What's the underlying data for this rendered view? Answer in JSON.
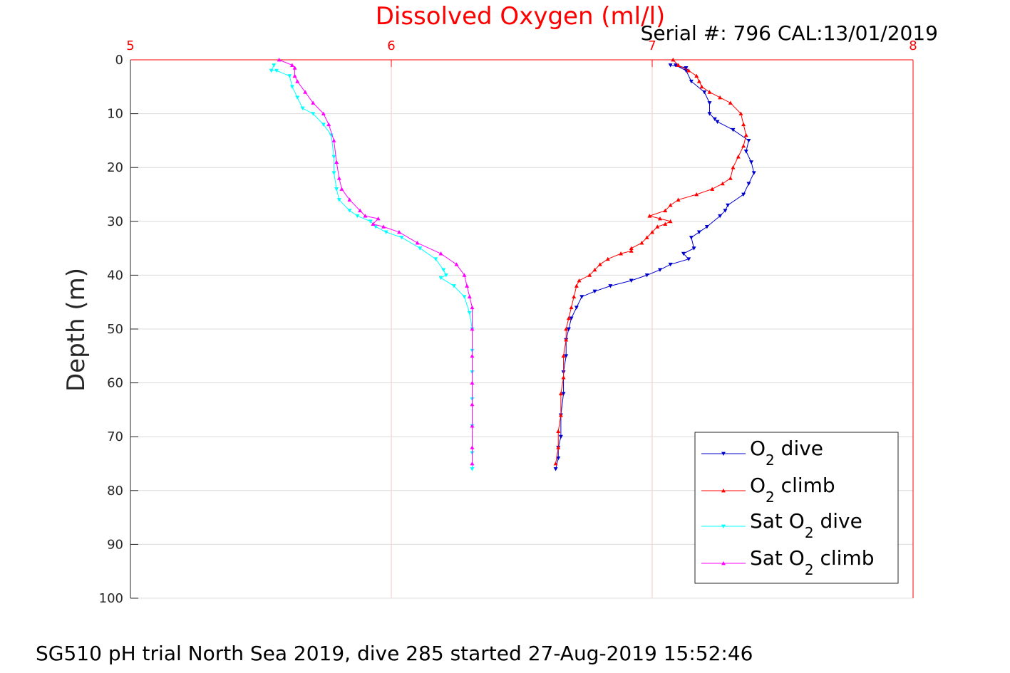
{
  "chart_data": {
    "type": "line",
    "title": "Dissolved Oxygen (ml/l)",
    "subtitle": "Serial #: 796  CAL:13/01/2019",
    "caption": "SG510 pH trial North Sea 2019, dive 285 started 27-Aug-2019 15:52:46",
    "ylabel": "Depth (m)",
    "xlabel": "",
    "xlim": [
      5,
      8
    ],
    "ylim": [
      0,
      100
    ],
    "y_reversed": true,
    "x_axis_position": "top",
    "x_ticks": [
      "5",
      "6",
      "7",
      "8"
    ],
    "y_ticks": [
      "0",
      "10",
      "20",
      "30",
      "40",
      "50",
      "60",
      "70",
      "80",
      "90",
      "100"
    ],
    "grid": true,
    "legend_placement": "bottom-right",
    "series": [
      {
        "name": "O2 dive",
        "legend": {
          "pre": "O",
          "sub": "2",
          "post": " dive"
        },
        "color": "#0000cc",
        "marker": "triangle-down",
        "x": [
          7.07,
          7.13,
          7.09,
          7.13,
          7.15,
          7.2,
          7.22,
          7.22,
          7.24,
          7.25,
          7.31,
          7.37,
          7.36,
          7.38,
          7.39,
          7.37,
          7.35,
          7.29,
          7.28,
          7.26,
          7.21,
          7.18,
          7.15,
          7.16,
          7.12,
          7.14,
          7.07,
          7.03,
          6.98,
          6.92,
          6.84,
          6.78,
          6.73,
          6.71,
          6.69,
          6.68,
          6.67,
          6.67,
          6.66,
          6.66,
          6.65,
          6.65,
          6.64,
          6.64,
          6.63
        ],
        "y": [
          1,
          1.5,
          1,
          2,
          4,
          6,
          8,
          10,
          11,
          11.5,
          13,
          15,
          17,
          19,
          21,
          23,
          25,
          27,
          28,
          29,
          31,
          32,
          33,
          35,
          36,
          37,
          38,
          39,
          40,
          41,
          42,
          43,
          44,
          46,
          48,
          50,
          52,
          55,
          58,
          62,
          66,
          70,
          72,
          74,
          76
        ]
      },
      {
        "name": "O2 climb",
        "legend": {
          "pre": "O",
          "sub": "2",
          "post": " climb"
        },
        "color": "#ff0000",
        "marker": "triangle-up",
        "x": [
          6.63,
          6.64,
          6.64,
          6.65,
          6.65,
          6.66,
          6.66,
          6.67,
          6.67,
          6.68,
          6.69,
          6.7,
          6.71,
          6.72,
          6.76,
          6.78,
          6.8,
          6.83,
          6.88,
          6.92,
          6.92,
          6.96,
          6.98,
          7.0,
          7.02,
          7.05,
          7.07,
          7.03,
          6.99,
          7.05,
          7.07,
          7.1,
          7.17,
          7.23,
          7.27,
          7.3,
          7.31,
          7.33,
          7.35,
          7.36,
          7.35,
          7.34,
          7.3,
          7.26,
          7.22,
          7.19,
          7.18,
          7.17,
          7.14,
          7.1,
          7.08
        ],
        "y": [
          75,
          72,
          69,
          66,
          62,
          59,
          55,
          52,
          50,
          48,
          46,
          44,
          42,
          41,
          40,
          39,
          38,
          37,
          36,
          35.5,
          35,
          34,
          33,
          32,
          31,
          30.5,
          30,
          29.5,
          29,
          28,
          27,
          26,
          25,
          24,
          23,
          22,
          20,
          18,
          16,
          14,
          12,
          10,
          8,
          7,
          6,
          5,
          4,
          3,
          2,
          1,
          0
        ]
      },
      {
        "name": "Sat O2 dive",
        "legend": {
          "pre": "Sat O",
          "sub": "2",
          "post": " dive"
        },
        "color": "#00ffff",
        "marker": "triangle-down",
        "x": [
          5.55,
          5.54,
          5.56,
          5.61,
          5.62,
          5.64,
          5.66,
          5.7,
          5.74,
          5.77,
          5.78,
          5.78,
          5.79,
          5.8,
          5.84,
          5.87,
          5.92,
          5.94,
          5.98,
          6.04,
          6.11,
          6.17,
          6.2,
          6.21,
          6.19,
          6.24,
          6.28,
          6.3,
          6.31,
          6.31,
          6.31,
          6.31,
          6.31,
          6.31,
          6.31
        ],
        "y": [
          1,
          2,
          2,
          3,
          5,
          7,
          9,
          10,
          12,
          14,
          18,
          21,
          24,
          26,
          28,
          29,
          30,
          31,
          32,
          33,
          35,
          37,
          39,
          40,
          40.5,
          42,
          44,
          47,
          50,
          54,
          58,
          63,
          68,
          73,
          76
        ]
      },
      {
        "name": "Sat O2 climb",
        "legend": {
          "pre": "Sat O",
          "sub": "2",
          "post": " climb"
        },
        "color": "#ff00ff",
        "marker": "triangle-up",
        "x": [
          6.31,
          6.31,
          6.31,
          6.31,
          6.31,
          6.31,
          6.31,
          6.31,
          6.3,
          6.29,
          6.28,
          6.25,
          6.19,
          6.1,
          6.03,
          5.97,
          5.93,
          5.95,
          5.9,
          5.88,
          5.84,
          5.81,
          5.8,
          5.79,
          5.78,
          5.76,
          5.74,
          5.7,
          5.67,
          5.64,
          5.63,
          5.63,
          5.62,
          5.57
        ],
        "y": [
          75,
          72,
          68,
          64,
          60,
          55,
          50,
          46,
          44,
          42,
          40,
          38,
          36,
          34,
          32,
          31,
          30.5,
          29.5,
          29,
          28,
          26,
          24,
          22,
          19,
          15,
          12,
          10,
          8,
          6,
          4,
          3,
          1.5,
          1,
          0
        ]
      }
    ]
  }
}
